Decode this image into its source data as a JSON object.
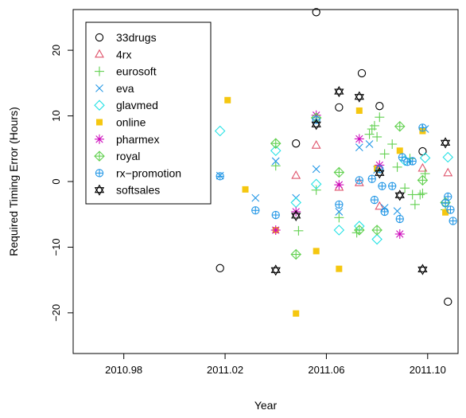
{
  "chart_data": {
    "type": "scatter",
    "xlabel": "Year",
    "ylabel": "Required Timing Error (Hours)",
    "xlim": [
      2010.96,
      2011.112
    ],
    "ylim": [
      -26.2,
      26.2
    ],
    "xticks": [
      2010.98,
      2011.02,
      2011.06,
      2011.1
    ],
    "xtick_labels": [
      "2010.98",
      "2011.02",
      "2011.06",
      "2011.10"
    ],
    "yticks": [
      -20,
      -10,
      0,
      10,
      20
    ],
    "ytick_labels": [
      "−20",
      "−10",
      "0",
      "10",
      "20"
    ],
    "grid": false,
    "legend_position": "top-left",
    "series": [
      {
        "name": "33drugs",
        "color": "#000000",
        "marker": "circle",
        "points": [
          [
            2011.018,
            -13.2
          ],
          [
            2011.048,
            5.8
          ],
          [
            2011.056,
            25.8
          ],
          [
            2011.065,
            11.3
          ],
          [
            2011.074,
            16.5
          ],
          [
            2011.081,
            11.5
          ],
          [
            2011.098,
            4.6
          ],
          [
            2011.108,
            -18.3
          ]
        ]
      },
      {
        "name": "4rx",
        "color": "#DF536B",
        "marker": "triangle",
        "points": [
          [
            2011.048,
            0.9
          ],
          [
            2011.056,
            5.5
          ],
          [
            2011.065,
            -0.9
          ],
          [
            2011.073,
            -0.2
          ],
          [
            2011.081,
            -3.8
          ],
          [
            2011.098,
            2.0
          ],
          [
            2011.108,
            1.3
          ]
        ]
      },
      {
        "name": "eurosoft",
        "color": "#61D04F",
        "marker": "plus",
        "points": [
          [
            2011.04,
            2.4
          ],
          [
            2011.049,
            -7.5
          ],
          [
            2011.056,
            -1.3
          ],
          [
            2011.065,
            -5.5
          ],
          [
            2011.072,
            -7.8
          ],
          [
            2011.077,
            7.2
          ],
          [
            2011.078,
            8.0
          ],
          [
            2011.079,
            8.5
          ],
          [
            2011.08,
            6.8
          ],
          [
            2011.081,
            9.8
          ],
          [
            2011.083,
            4.2
          ],
          [
            2011.086,
            5.7
          ],
          [
            2011.088,
            2.2
          ],
          [
            2011.091,
            -1.0
          ],
          [
            2011.093,
            3.5
          ],
          [
            2011.094,
            -2.0
          ],
          [
            2011.095,
            -3.5
          ],
          [
            2011.097,
            -2.0
          ],
          [
            2011.098,
            -1.8
          ],
          [
            2011.099,
            1.2
          ],
          [
            2011.107,
            -4.3
          ]
        ]
      },
      {
        "name": "eva",
        "color": "#2297E6",
        "marker": "x",
        "points": [
          [
            2011.018,
            0.9
          ],
          [
            2011.032,
            -2.5
          ],
          [
            2011.04,
            3.1
          ],
          [
            2011.048,
            -2.5
          ],
          [
            2011.056,
            1.9
          ],
          [
            2011.065,
            -4.6
          ],
          [
            2011.073,
            5.2
          ],
          [
            2011.077,
            5.7
          ],
          [
            2011.08,
            1.8
          ],
          [
            2011.083,
            -4.0
          ],
          [
            2011.088,
            -4.5
          ],
          [
            2011.099,
            8.0
          ]
        ]
      },
      {
        "name": "glavmed",
        "color": "#28E2E5",
        "marker": "diamond",
        "points": [
          [
            2011.018,
            7.7
          ],
          [
            2011.04,
            4.7
          ],
          [
            2011.048,
            -3.2
          ],
          [
            2011.056,
            -0.4
          ],
          [
            2011.065,
            -7.4
          ],
          [
            2011.073,
            -6.8
          ],
          [
            2011.08,
            -8.8
          ],
          [
            2011.091,
            3.2
          ],
          [
            2011.099,
            3.6
          ],
          [
            2011.108,
            3.7
          ]
        ]
      },
      {
        "name": "online",
        "color": "#F5C710",
        "marker": "square",
        "points": [
          [
            2011.021,
            12.4
          ],
          [
            2011.028,
            -1.2
          ],
          [
            2011.04,
            -7.4
          ],
          [
            2011.048,
            -20.1
          ],
          [
            2011.056,
            -10.6
          ],
          [
            2011.065,
            -13.3
          ],
          [
            2011.073,
            10.8
          ],
          [
            2011.08,
            2.0
          ],
          [
            2011.089,
            4.7
          ],
          [
            2011.098,
            7.7
          ],
          [
            2011.107,
            -4.7
          ]
        ]
      },
      {
        "name": "pharmex",
        "color": "#CD0BBC",
        "marker": "asterisk",
        "points": [
          [
            2011.04,
            -7.4
          ],
          [
            2011.048,
            -4.6
          ],
          [
            2011.056,
            10.1
          ],
          [
            2011.065,
            -0.5
          ],
          [
            2011.073,
            6.5
          ],
          [
            2011.081,
            2.5
          ],
          [
            2011.089,
            -8.0
          ]
        ]
      },
      {
        "name": "royal",
        "color": "#61D04F",
        "marker": "diamond-plus",
        "points": [
          [
            2011.04,
            5.8
          ],
          [
            2011.048,
            -11.1
          ],
          [
            2011.056,
            9.7
          ],
          [
            2011.065,
            1.4
          ],
          [
            2011.073,
            -7.4
          ],
          [
            2011.08,
            -7.4
          ],
          [
            2011.089,
            8.4
          ],
          [
            2011.098,
            0.2
          ],
          [
            2011.107,
            -3.2
          ]
        ]
      },
      {
        "name": "rx−promotion",
        "color": "#2297E6",
        "marker": "circle-plus",
        "points": [
          [
            2011.018,
            0.8
          ],
          [
            2011.032,
            -4.4
          ],
          [
            2011.04,
            -5.1
          ],
          [
            2011.056,
            9.4
          ],
          [
            2011.065,
            -3.5
          ],
          [
            2011.073,
            0.2
          ],
          [
            2011.078,
            0.4
          ],
          [
            2011.079,
            -2.8
          ],
          [
            2011.081,
            1.9
          ],
          [
            2011.082,
            -0.7
          ],
          [
            2011.083,
            -4.6
          ],
          [
            2011.086,
            -0.7
          ],
          [
            2011.089,
            -5.7
          ],
          [
            2011.09,
            3.7
          ],
          [
            2011.092,
            3.0
          ],
          [
            2011.094,
            3.1
          ],
          [
            2011.098,
            8.2
          ],
          [
            2011.107,
            -3.3
          ],
          [
            2011.108,
            -2.3
          ],
          [
            2011.109,
            -4.3
          ],
          [
            2011.11,
            -6.0
          ]
        ]
      },
      {
        "name": "softsales",
        "color": "#000000",
        "marker": "star",
        "points": [
          [
            2011.04,
            -13.5
          ],
          [
            2011.048,
            -5.2
          ],
          [
            2011.056,
            8.7
          ],
          [
            2011.065,
            13.7
          ],
          [
            2011.073,
            12.9
          ],
          [
            2011.081,
            1.3
          ],
          [
            2011.089,
            -2.1
          ],
          [
            2011.098,
            -13.4
          ],
          [
            2011.107,
            5.9
          ]
        ]
      }
    ]
  }
}
